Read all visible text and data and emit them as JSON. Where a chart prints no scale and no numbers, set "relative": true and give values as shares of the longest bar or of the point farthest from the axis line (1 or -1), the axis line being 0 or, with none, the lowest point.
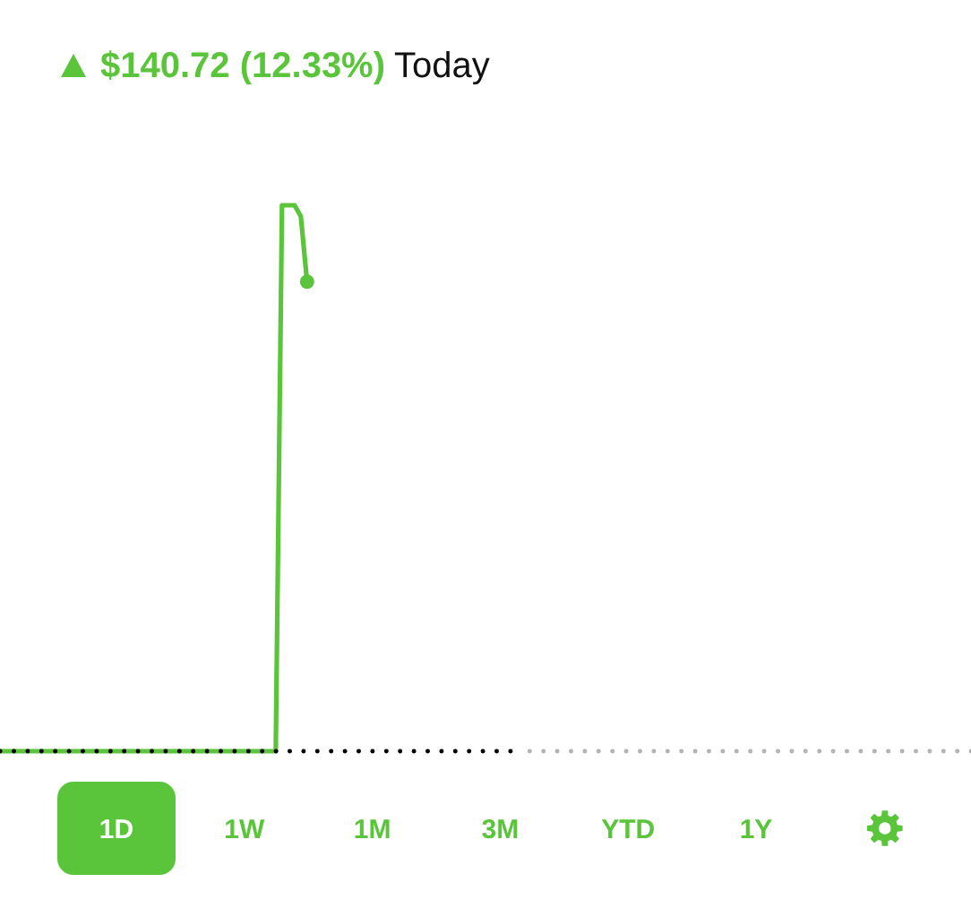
{
  "chart_data": {
    "type": "line",
    "relative": true,
    "tick_labels": false,
    "categories": [
      null,
      null,
      null,
      null,
      null,
      null,
      null,
      null,
      null,
      null,
      null,
      null,
      null,
      null,
      null,
      null,
      null,
      null,
      null,
      null,
      null,
      null,
      null,
      null,
      null,
      null,
      null,
      null,
      null,
      null,
      null,
      null,
      null,
      null,
      null,
      null,
      null,
      null,
      null,
      null,
      null,
      null,
      null,
      null,
      null,
      null,
      null,
      null,
      null,
      null
    ],
    "series": [
      {
        "color": "#5ac53b",
        "values": [
          0,
          0,
          0,
          0,
          0,
          0,
          0,
          0,
          0,
          0,
          0,
          0,
          0,
          0,
          0,
          0,
          0,
          0,
          0,
          0,
          0,
          0,
          0,
          0,
          0,
          0,
          0,
          0,
          0,
          0,
          0,
          0,
          0,
          0,
          0,
          0,
          0,
          0,
          0,
          0,
          0,
          0,
          0,
          0,
          0,
          1,
          1,
          1,
          0.98,
          0.86
        ]
      }
    ],
    "annotations": [
      "$140.72 (12.33%)",
      "Today",
      "1D",
      "1W",
      "1M",
      "3M",
      "YTD",
      "1Y"
    ]
  }
}
